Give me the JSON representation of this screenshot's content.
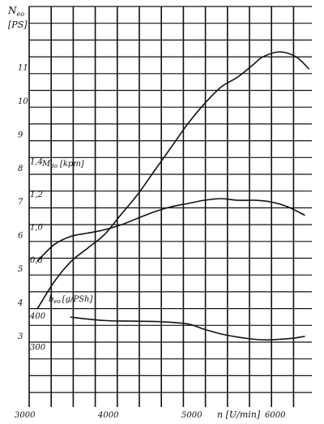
{
  "chart_data": {
    "type": "line",
    "x_axis": {
      "label": "n [U/min]",
      "ticks": [
        3000,
        4000,
        5000,
        6000
      ],
      "range": [
        3000,
        6400
      ]
    },
    "axes": {
      "power": {
        "label_main": "N",
        "label_sub": "eo",
        "unit": "[PS]",
        "ticks": [
          "3",
          "4",
          "5",
          "6",
          "7",
          "8",
          "9",
          "10",
          "11"
        ],
        "range": [
          0.5,
          11.6
        ]
      },
      "torque": {
        "label_main": "M",
        "label_sub": "do",
        "unit": "[kpm]",
        "ticks": [
          "0,8",
          "1,0",
          "1,2",
          "1,4"
        ],
        "range": [
          0.8,
          1.4
        ]
      },
      "consumption": {
        "label_main": "b",
        "label_sub": "eo",
        "unit": "[g/PSh]",
        "ticks": [
          "300",
          "400"
        ],
        "range": [
          300,
          400
        ]
      }
    },
    "series": [
      {
        "axis": "power",
        "x": [
          3100,
          3300,
          3500,
          3700,
          3900,
          4100,
          4300,
          4500,
          4700,
          4900,
          5100,
          5300,
          5500,
          5700,
          5800,
          6000,
          6200,
          6350
        ],
        "y": [
          3.8,
          4.6,
          5.2,
          5.6,
          6.0,
          6.6,
          7.2,
          7.9,
          8.6,
          9.3,
          9.9,
          10.4,
          10.7,
          11.1,
          11.3,
          11.45,
          11.3,
          10.95
        ]
      },
      {
        "axis": "torque",
        "x": [
          3100,
          3300,
          3500,
          3700,
          3900,
          4100,
          4300,
          4500,
          4700,
          4900,
          5100,
          5300,
          5500,
          5700,
          5900,
          6100,
          6300
        ],
        "y": [
          0.82,
          0.92,
          0.97,
          0.99,
          1.01,
          1.04,
          1.08,
          1.12,
          1.15,
          1.17,
          1.19,
          1.2,
          1.19,
          1.19,
          1.18,
          1.15,
          1.1
        ]
      },
      {
        "axis": "consumption",
        "x": [
          3500,
          3800,
          4000,
          4300,
          4600,
          4900,
          5100,
          5300,
          5500,
          5700,
          5850,
          6000,
          6150,
          6300
        ],
        "y": [
          384,
          375,
          372,
          371,
          369,
          362,
          345,
          330,
          320,
          313,
          311,
          313,
          316,
          322
        ]
      }
    ],
    "grid": true
  }
}
